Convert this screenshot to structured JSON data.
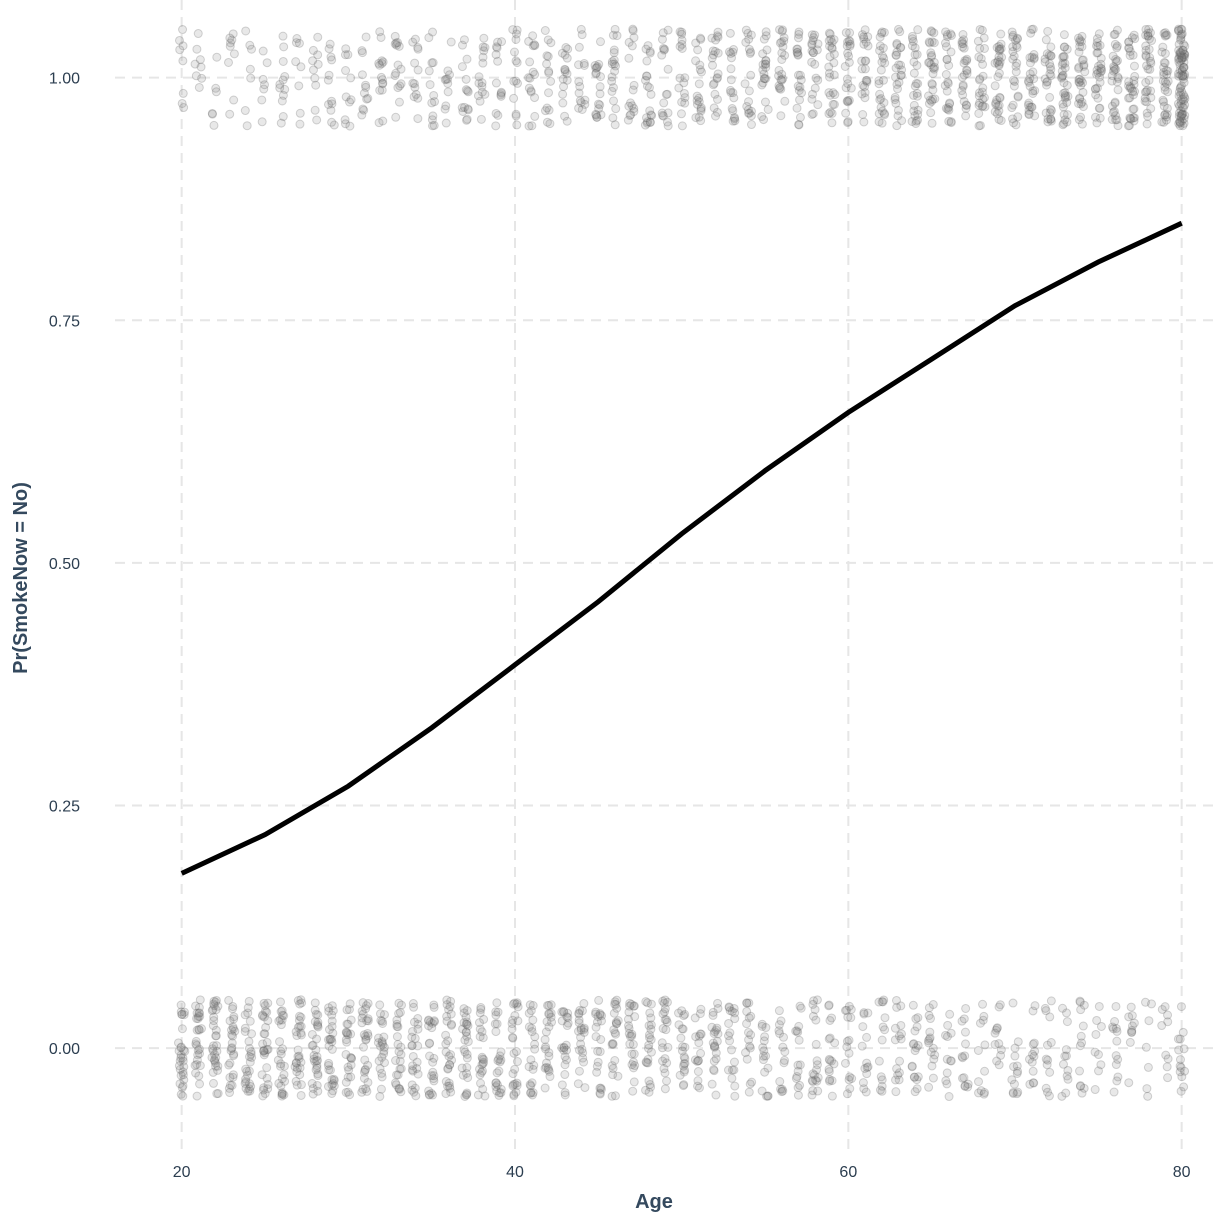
{
  "chart_data": {
    "type": "scatter",
    "xlabel": "Age",
    "ylabel": "Pr(SmokeNow = No)",
    "xlim": [
      16,
      82
    ],
    "ylim": [
      -0.105,
      1.08
    ],
    "x_ticks": [
      20,
      40,
      60,
      80
    ],
    "y_ticks": [
      0.0,
      0.25,
      0.5,
      0.75,
      1.0
    ],
    "x_tick_labels": [
      "20",
      "40",
      "60",
      "80"
    ],
    "y_tick_labels": [
      "0.00",
      "0.25",
      "0.50",
      "0.75",
      "1.00"
    ],
    "grid": true,
    "legend": "none",
    "series": [
      {
        "type": "line",
        "description": "fitted logistic probability",
        "x": [
          20,
          25,
          30,
          35,
          40,
          45,
          50,
          55,
          60,
          65,
          70,
          75,
          80
        ],
        "y": [
          0.18,
          0.22,
          0.27,
          0.33,
          0.395,
          0.46,
          0.53,
          0.595,
          0.655,
          0.71,
          0.765,
          0.81,
          0.85
        ],
        "color": "#000000"
      },
      {
        "type": "scatter",
        "description": "jittered observations (outcome 0 or 1 by integer age)",
        "x_range": [
          20,
          80
        ],
        "y_values": [
          0,
          1
        ],
        "jitter_height": 0.05,
        "color": "#7f7f7f",
        "opacity": 0.2
      }
    ]
  }
}
